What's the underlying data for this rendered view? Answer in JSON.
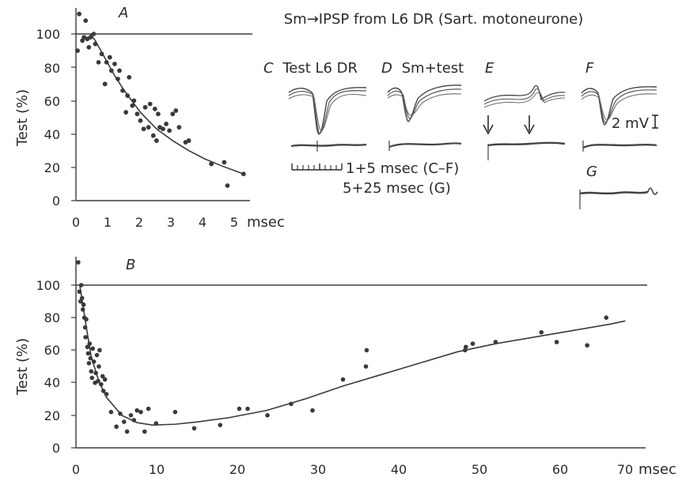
{
  "figure": {
    "title": "Sm→IPSP from L6 DR (Sart. motoneurone)",
    "trace_panels": [
      {
        "letter": "C",
        "label": "Test L6 DR"
      },
      {
        "letter": "D",
        "label": "Sm+test"
      },
      {
        "letter": "E",
        "label": ""
      },
      {
        "letter": "F",
        "label": ""
      },
      {
        "letter": "G",
        "label": ""
      }
    ],
    "scale_labels": {
      "voltage": "2 mV",
      "time_cf": "1+5 msec (C–F)",
      "time_g": "5+25 msec (G)"
    }
  },
  "chart_data": [
    {
      "id": "A",
      "type": "scatter",
      "title": "A",
      "xlabel": "msec",
      "ylabel": "Test (%)",
      "xlim": [
        0,
        5.4
      ],
      "ylim": [
        0,
        115
      ],
      "xticks": [
        0,
        1,
        2,
        3,
        4,
        5
      ],
      "xtick_labels": [
        "0",
        "1",
        "2",
        "3",
        "4",
        "5"
      ],
      "yticks": [
        0,
        20,
        40,
        60,
        80,
        100
      ],
      "ytick_labels": [
        "0",
        "20",
        "40",
        "60",
        "80",
        "100"
      ],
      "reference_y": 100,
      "grid": false,
      "points": [
        [
          0.05,
          90
        ],
        [
          0.1,
          112
        ],
        [
          0.2,
          96
        ],
        [
          0.25,
          98
        ],
        [
          0.3,
          108
        ],
        [
          0.35,
          97
        ],
        [
          0.4,
          92
        ],
        [
          0.45,
          98
        ],
        [
          0.55,
          100
        ],
        [
          0.6,
          94
        ],
        [
          0.7,
          83
        ],
        [
          0.8,
          88
        ],
        [
          0.9,
          70
        ],
        [
          0.95,
          83
        ],
        [
          1.05,
          86
        ],
        [
          1.1,
          78
        ],
        [
          1.2,
          82
        ],
        [
          1.3,
          73
        ],
        [
          1.35,
          78
        ],
        [
          1.45,
          66
        ],
        [
          1.55,
          53
        ],
        [
          1.6,
          63
        ],
        [
          1.65,
          74
        ],
        [
          1.75,
          57
        ],
        [
          1.8,
          60
        ],
        [
          1.9,
          52
        ],
        [
          2.0,
          48
        ],
        [
          2.1,
          43
        ],
        [
          2.15,
          56
        ],
        [
          2.25,
          44
        ],
        [
          2.3,
          58
        ],
        [
          2.4,
          39
        ],
        [
          2.45,
          55
        ],
        [
          2.5,
          36
        ],
        [
          2.55,
          52
        ],
        [
          2.6,
          44
        ],
        [
          2.7,
          43
        ],
        [
          2.8,
          46
        ],
        [
          2.9,
          42
        ],
        [
          3.0,
          52
        ],
        [
          3.1,
          54
        ],
        [
          3.2,
          44
        ],
        [
          3.4,
          35
        ],
        [
          3.5,
          36
        ],
        [
          4.2,
          22
        ],
        [
          4.6,
          23
        ],
        [
          4.7,
          9
        ],
        [
          5.2,
          16
        ]
      ],
      "curve": [
        [
          0.45,
          100
        ],
        [
          0.6,
          96
        ],
        [
          0.8,
          89
        ],
        [
          1.0,
          82
        ],
        [
          1.2,
          75
        ],
        [
          1.5,
          66
        ],
        [
          2.0,
          53
        ],
        [
          2.5,
          43
        ],
        [
          3.0,
          36
        ],
        [
          3.5,
          30
        ],
        [
          4.0,
          25
        ],
        [
          4.5,
          21
        ],
        [
          5.2,
          16
        ]
      ]
    },
    {
      "id": "B",
      "type": "scatter",
      "title": "B",
      "xlabel": "msec",
      "ylabel": "Test (%)",
      "xlim": [
        0,
        73
      ],
      "ylim": [
        0,
        115
      ],
      "xticks": [
        0,
        10,
        20,
        30,
        40,
        50,
        60,
        70
      ],
      "xtick_labels": [
        "0",
        "10",
        "20",
        "30",
        "40",
        "50",
        "60",
        "70"
      ],
      "yticks": [
        0,
        20,
        40,
        60,
        80,
        100
      ],
      "ytick_labels": [
        "0",
        "20",
        "40",
        "60",
        "80",
        "100"
      ],
      "reference_y": 100,
      "grid": false,
      "points": [
        [
          0.3,
          114
        ],
        [
          0.45,
          96
        ],
        [
          0.6,
          90
        ],
        [
          0.7,
          100
        ],
        [
          0.8,
          92
        ],
        [
          0.9,
          85
        ],
        [
          1.0,
          88
        ],
        [
          1.1,
          80
        ],
        [
          1.2,
          74
        ],
        [
          1.25,
          68
        ],
        [
          1.35,
          79
        ],
        [
          1.5,
          62
        ],
        [
          1.6,
          58
        ],
        [
          1.7,
          52
        ],
        [
          1.8,
          64
        ],
        [
          1.9,
          55
        ],
        [
          2.0,
          47
        ],
        [
          2.1,
          43
        ],
        [
          2.2,
          61
        ],
        [
          2.35,
          53
        ],
        [
          2.5,
          40
        ],
        [
          2.6,
          46
        ],
        [
          2.75,
          57
        ],
        [
          2.9,
          41
        ],
        [
          3.0,
          50
        ],
        [
          3.1,
          60
        ],
        [
          3.3,
          39
        ],
        [
          3.5,
          44
        ],
        [
          3.6,
          35
        ],
        [
          3.8,
          42
        ],
        [
          4.0,
          33
        ],
        [
          4.6,
          22
        ],
        [
          5.3,
          13
        ],
        [
          5.8,
          21
        ],
        [
          6.3,
          16
        ],
        [
          6.7,
          10
        ],
        [
          7.2,
          20
        ],
        [
          7.6,
          17
        ],
        [
          8.0,
          23
        ],
        [
          8.5,
          22
        ],
        [
          9.0,
          10
        ],
        [
          9.5,
          24
        ],
        [
          10.5,
          15
        ],
        [
          13.0,
          22
        ],
        [
          15.5,
          12
        ],
        [
          18.9,
          14
        ],
        [
          21.4,
          24
        ],
        [
          22.5,
          24
        ],
        [
          25.1,
          20
        ],
        [
          28.2,
          27
        ],
        [
          31.0,
          23
        ],
        [
          35.0,
          42
        ],
        [
          38.0,
          50
        ],
        [
          38.1,
          60
        ],
        [
          51.0,
          60
        ],
        [
          51.1,
          62
        ],
        [
          52.0,
          64
        ],
        [
          55.0,
          65
        ],
        [
          61.0,
          71
        ],
        [
          63.0,
          65
        ],
        [
          67.0,
          63
        ],
        [
          69.5,
          80
        ]
      ],
      "curve": [
        [
          0.5,
          100
        ],
        [
          1.0,
          85
        ],
        [
          1.5,
          70
        ],
        [
          2.0,
          56
        ],
        [
          3.0,
          41
        ],
        [
          4.0,
          31
        ],
        [
          6.0,
          20
        ],
        [
          8.0,
          15.5
        ],
        [
          10.0,
          14
        ],
        [
          13.0,
          14.5
        ],
        [
          16.0,
          16
        ],
        [
          20.0,
          18.5
        ],
        [
          25.0,
          23
        ],
        [
          30.0,
          30
        ],
        [
          35.0,
          38
        ],
        [
          40.0,
          45
        ],
        [
          45.0,
          52
        ],
        [
          50.0,
          59
        ],
        [
          55.0,
          64
        ],
        [
          60.0,
          68
        ],
        [
          65.0,
          72
        ],
        [
          70.0,
          76
        ],
        [
          72.0,
          78
        ]
      ]
    }
  ]
}
